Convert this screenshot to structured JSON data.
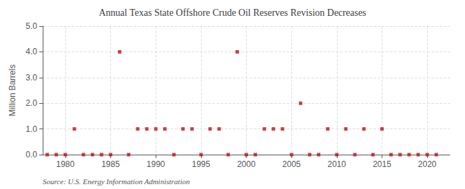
{
  "chart_data": {
    "type": "scatter",
    "title": "Annual Texas State Offshore Crude Oil Reserves Revision Decreases",
    "ylabel": "Million Barrels",
    "annotation": "Source: U.S. Energy Information Administration",
    "color": "#bb1111",
    "marker": "square",
    "grid": true,
    "xlim": [
      1977.5,
      2022.5
    ],
    "xticks": [
      1980,
      1985,
      1990,
      1995,
      2000,
      2005,
      2010,
      2015,
      2020
    ],
    "ylim": [
      0.0,
      5.0
    ],
    "yticks": [
      {
        "value": 0.0,
        "label": "0.0"
      },
      {
        "value": 1.0,
        "label": "1.0"
      },
      {
        "value": 2.0,
        "label": "2.0"
      },
      {
        "value": 3.0,
        "label": "3.0"
      },
      {
        "value": 4.0,
        "label": "4.0"
      },
      {
        "value": 5.0,
        "label": "5.0"
      }
    ],
    "x": [
      1978,
      1979,
      1980,
      1981,
      1982,
      1983,
      1984,
      1985,
      1986,
      1987,
      1988,
      1989,
      1990,
      1991,
      1992,
      1993,
      1994,
      1995,
      1996,
      1997,
      1998,
      1999,
      2000,
      2001,
      2002,
      2003,
      2004,
      2005,
      2006,
      2007,
      2008,
      2009,
      2010,
      2011,
      2012,
      2013,
      2014,
      2015,
      2016,
      2017,
      2018,
      2019,
      2020,
      2021
    ],
    "values": [
      0.0,
      0.0,
      0.0,
      1.0,
      0.0,
      0.0,
      0.0,
      0.0,
      4.0,
      0.0,
      1.0,
      1.0,
      1.0,
      1.0,
      0.0,
      1.0,
      1.0,
      0.0,
      1.0,
      1.0,
      0.0,
      4.0,
      0.0,
      0.0,
      1.0,
      1.0,
      1.0,
      0.0,
      2.0,
      0.0,
      0.0,
      1.0,
      0.0,
      1.0,
      0.0,
      1.0,
      0.0,
      1.0,
      0.0,
      0.0,
      0.0,
      0.0,
      0.0,
      0.0
    ]
  }
}
